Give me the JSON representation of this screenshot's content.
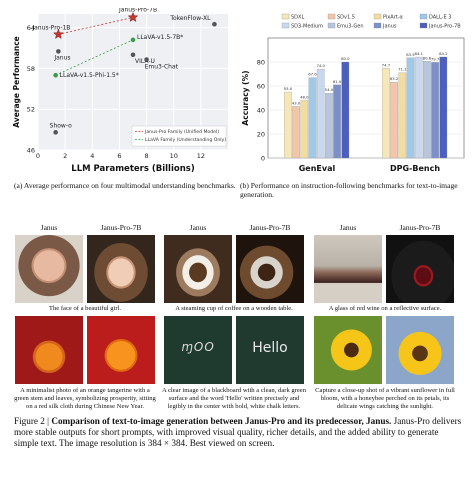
{
  "chart_data": [
    {
      "type": "scatter",
      "xlabel": "LLM Parameters (Billions)",
      "ylabel": "Average Performance",
      "xlim": [
        0,
        14
      ],
      "ylim": [
        46,
        66
      ],
      "xticks": [
        "0",
        "2",
        "4",
        "6",
        "8",
        "10",
        "12"
      ],
      "yticks": [
        "46",
        "52",
        "58",
        "64"
      ],
      "grid": true,
      "legend_position": "bottom-right",
      "legend": [
        "Janus-Pro Family (Unified Model)",
        "LLaVA Family (Understanding Only)"
      ],
      "points": [
        {
          "label": "Janus-Pro-7B",
          "x": 7.0,
          "y": 65.5,
          "group": "janus-pro",
          "marker": "star"
        },
        {
          "label": "Janus-Pro-1B",
          "x": 1.5,
          "y": 63.0,
          "group": "janus-pro",
          "marker": "star"
        },
        {
          "label": "Janus",
          "x": 1.5,
          "y": 60.5,
          "group": "other",
          "marker": "dot"
        },
        {
          "label": "TokenFlow-XL",
          "x": 13.0,
          "y": 64.5,
          "group": "other",
          "marker": "dot"
        },
        {
          "label": "LLaVA-v1.5-7B*",
          "x": 7.0,
          "y": 62.2,
          "group": "llava",
          "marker": "dot"
        },
        {
          "label": "VILA-U",
          "x": 7.0,
          "y": 60.0,
          "group": "other",
          "marker": "dot"
        },
        {
          "label": "Emu3-Chat",
          "x": 8.0,
          "y": 59.3,
          "group": "other",
          "marker": "dot"
        },
        {
          "label": "LLaVA-v1.5-Phi-1.5*",
          "x": 1.3,
          "y": 57.0,
          "group": "llava",
          "marker": "dot"
        },
        {
          "label": "Show-o",
          "x": 1.3,
          "y": 48.6,
          "group": "other",
          "marker": "dot"
        }
      ],
      "colors": {
        "janus-pro": "#c0392b",
        "llava": "#3a9b4a",
        "other": "#555555"
      }
    },
    {
      "type": "bar",
      "ylabel": "Accuracy (%)",
      "ylim": [
        0,
        100
      ],
      "yticks": [
        "0",
        "20",
        "40",
        "60",
        "80"
      ],
      "categories": [
        "GenEval",
        "DPG-Bench"
      ],
      "series": [
        {
          "name": "SDXL",
          "color": "#f6e7b8",
          "values": [
            55.0,
            74.7
          ]
        },
        {
          "name": "SDv1.5",
          "color": "#f3c6a8",
          "values": [
            43.0,
            63.2
          ]
        },
        {
          "name": "PixArt-α",
          "color": "#f1dd9f",
          "values": [
            48.0,
            71.1
          ]
        },
        {
          "name": "DALL-E 3",
          "color": "#9fc9e8",
          "values": [
            67.0,
            83.5
          ]
        },
        {
          "name": "SD3-Medium",
          "color": "#c8d8ee",
          "values": [
            74.0,
            84.1
          ]
        },
        {
          "name": "Emu3-Gen",
          "color": "#b7c6de",
          "values": [
            54.0,
            80.6
          ]
        },
        {
          "name": "Janus",
          "color": "#7b8fc9",
          "values": [
            61.0,
            79.7
          ]
        },
        {
          "name": "Janus-Pro-7B",
          "color": "#4c5fbd",
          "values": [
            80.0,
            84.2
          ]
        }
      ],
      "value_labels": [
        [
          "55.0",
          "74.7"
        ],
        [
          "43.0",
          "63.2"
        ],
        [
          "48.0",
          "71.1"
        ],
        [
          "67.0",
          "83.5"
        ],
        [
          "74.0",
          "84.1"
        ],
        [
          "54.0",
          "80.6"
        ],
        [
          "61.0",
          "79.7"
        ],
        [
          "80.0",
          "84.2"
        ]
      ]
    }
  ],
  "subcaptions": {
    "a": "(a) Average performance on four multimodal understanding benchmarks.",
    "b": "(b) Performance on instruction-following benchmarks for text-to-image generation."
  },
  "grid_headers": [
    "Janus",
    "Janus-Pro-7B",
    "Janus",
    "Janus-Pro-7B",
    "Janus",
    "Janus-Pro-7B"
  ],
  "prompts_row1": [
    "The face of a beautiful girl.",
    "A steaming cup of coffee on a wooden table.",
    "A glass of red wine on a reflective surface."
  ],
  "prompts_row2": [
    "A minimalist photo of an orange tangerine with a green stem and leaves, symbolizing prosperity, sitting on a red silk cloth during Chinese New Year.",
    "A clear image of a blackboard with a clean, dark green surface and the word 'Hello' written precisely and legibly in the center with bold, white chalk letters.",
    "Capture a close-up shot of a vibrant sunflower in full bloom, with a honeybee perched on its petals, its delicate wings catching the sunlight."
  ],
  "board_text": {
    "janus": "ɱOO",
    "janus_pro": "Hello"
  },
  "figure_caption": {
    "label": "Figure 2 |",
    "bold_text": "Comparison of text-to-image generation between Janus-Pro and its predecessor, Janus.",
    "body": "Janus-Pro delivers more stable outputs for short prompts, with improved visual quality, richer details, and the added ability to generate simple text. The image resolution is 384 × 384. Best viewed on screen."
  }
}
